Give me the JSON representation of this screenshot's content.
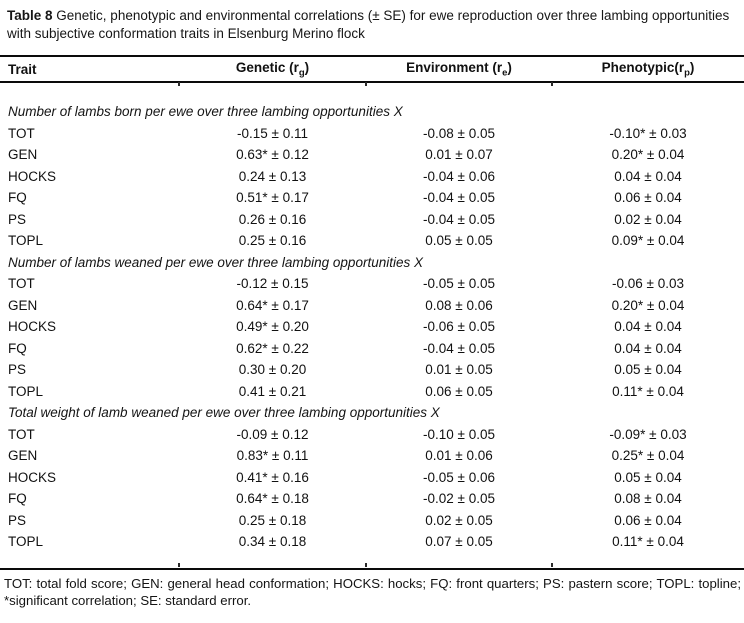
{
  "title": {
    "label": "Table 8",
    "text": " Genetic, phenotypic and environmental correlations (± SE) for ewe reproduction over three lambing opportunities with subjective conformation traits in Elsenburg Merino flock"
  },
  "table": {
    "columns": {
      "trait": "Trait",
      "genetic": {
        "pre": "Genetic (r",
        "sub": "g",
        "post": ")"
      },
      "environment": {
        "pre": "Environment (r",
        "sub": "e",
        "post": ")"
      },
      "phenotypic": {
        "pre": "Phenotypic(r",
        "sub": "p",
        "post": ")"
      }
    },
    "sections": [
      {
        "heading": "Number of lambs born per ewe over three lambing opportunities X",
        "rows": [
          {
            "trait": "TOT",
            "genetic": "-0.15 ± 0.11",
            "environment": "-0.08 ± 0.05",
            "phenotypic": "-0.10* ± 0.03"
          },
          {
            "trait": "GEN",
            "genetic": "0.63* ± 0.12",
            "environment": "0.01 ± 0.07",
            "phenotypic": "0.20* ± 0.04"
          },
          {
            "trait": "HOCKS",
            "genetic": "0.24 ± 0.13",
            "environment": "-0.04 ± 0.06",
            "phenotypic": "0.04 ± 0.04"
          },
          {
            "trait": "FQ",
            "genetic": "0.51* ± 0.17",
            "environment": "-0.04 ± 0.05",
            "phenotypic": "0.06 ± 0.04"
          },
          {
            "trait": "PS",
            "genetic": "0.26 ± 0.16",
            "environment": "-0.04 ± 0.05",
            "phenotypic": "0.02 ± 0.04"
          },
          {
            "trait": "TOPL",
            "genetic": "0.25 ± 0.16",
            "environment": "0.05 ± 0.05",
            "phenotypic": "0.09* ± 0.04"
          }
        ]
      },
      {
        "heading": "Number of lambs weaned per ewe over three lambing opportunities X",
        "rows": [
          {
            "trait": "TOT",
            "genetic": "-0.12 ± 0.15",
            "environment": "-0.05 ± 0.05",
            "phenotypic": "-0.06 ± 0.03"
          },
          {
            "trait": "GEN",
            "genetic": "0.64* ± 0.17",
            "environment": "0.08 ± 0.06",
            "phenotypic": "0.20* ± 0.04"
          },
          {
            "trait": "HOCKS",
            "genetic": "0.49* ± 0.20",
            "environment": "-0.06 ± 0.05",
            "phenotypic": "0.04 ± 0.04"
          },
          {
            "trait": "FQ",
            "genetic": "0.62* ± 0.22",
            "environment": "-0.04 ± 0.05",
            "phenotypic": "0.04 ± 0.04"
          },
          {
            "trait": "PS",
            "genetic": "0.30 ± 0.20",
            "environment": "0.01 ± 0.05",
            "phenotypic": "0.05 ± 0.04"
          },
          {
            "trait": "TOPL",
            "genetic": "0.41 ± 0.21",
            "environment": "0.06 ± 0.05",
            "phenotypic": "0.11* ± 0.04"
          }
        ]
      },
      {
        "heading": "Total weight of lamb weaned per ewe over three lambing opportunities X",
        "rows": [
          {
            "trait": "TOT",
            "genetic": "-0.09 ± 0.12",
            "environment": "-0.10 ± 0.05",
            "phenotypic": "-0.09* ± 0.03"
          },
          {
            "trait": "GEN",
            "genetic": "0.83* ± 0.11",
            "environment": "0.01 ± 0.06",
            "phenotypic": "0.25* ± 0.04"
          },
          {
            "trait": "HOCKS",
            "genetic": "0.41* ± 0.16",
            "environment": "-0.05 ± 0.06",
            "phenotypic": "0.05 ± 0.04"
          },
          {
            "trait": "FQ",
            "genetic": "0.64* ± 0.18",
            "environment": "-0.02 ± 0.05",
            "phenotypic": "0.08 ± 0.04"
          },
          {
            "trait": "PS",
            "genetic": "0.25 ± 0.18",
            "environment": "0.02 ± 0.05",
            "phenotypic": "0.06 ± 0.04"
          },
          {
            "trait": "TOPL",
            "genetic": "0.34 ± 0.18",
            "environment": "0.07 ± 0.05",
            "phenotypic": "0.11* ± 0.04"
          }
        ]
      }
    ]
  },
  "footnote": "TOT: total fold score; GEN: general head conformation; HOCKS: hocks; FQ: front quarters; PS: pastern score; TOPL: topline; *significant correlation; SE: standard error.",
  "colors": {
    "text": "#111111",
    "rule": "#0a0a0a",
    "background": "#ffffff"
  }
}
